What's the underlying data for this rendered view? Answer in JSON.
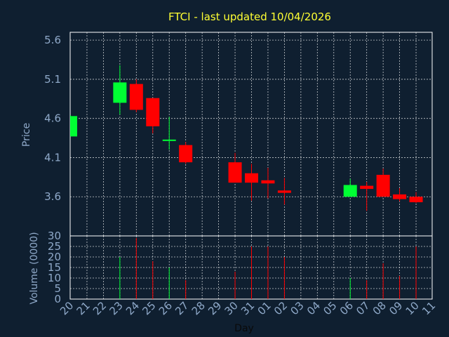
{
  "chart_data": [
    {
      "type": "candlestick",
      "title": "FTCI - last updated 10/04/2026",
      "ylabel": "Price",
      "ylim": [
        3.1,
        5.7
      ],
      "yticks": [
        "5.6",
        "5.1",
        "4.6",
        "4.1",
        "3.6"
      ],
      "colors": {
        "up": "#00ff33",
        "down": "#ff0000",
        "axis_text": "#8fa9c9",
        "title": "#ffff33",
        "background": "#0f1f30"
      },
      "candles": [
        {
          "day": "20",
          "open": 4.37,
          "high": 4.64,
          "low": 4.37,
          "close": 4.63
        },
        {
          "day": "23",
          "open": 4.8,
          "high": 5.28,
          "low": 4.65,
          "close": 5.06
        },
        {
          "day": "24",
          "open": 5.04,
          "high": 5.1,
          "low": 4.68,
          "close": 4.71
        },
        {
          "day": "25",
          "open": 4.86,
          "high": 4.86,
          "low": 4.41,
          "close": 4.5
        },
        {
          "day": "26",
          "open": 4.32,
          "high": 4.62,
          "low": 4.2,
          "close": 4.33
        },
        {
          "day": "27",
          "open": 4.26,
          "high": 4.3,
          "low": 4.02,
          "close": 4.04
        },
        {
          "day": "30",
          "open": 4.04,
          "high": 4.16,
          "low": 3.8,
          "close": 3.78
        },
        {
          "day": "31",
          "open": 3.9,
          "high": 4.02,
          "low": 3.55,
          "close": 3.78
        },
        {
          "day": "01",
          "open": 3.81,
          "high": 3.97,
          "low": 3.58,
          "close": 3.77
        },
        {
          "day": "02",
          "open": 3.68,
          "high": 3.84,
          "low": 3.5,
          "close": 3.65
        },
        {
          "day": "06",
          "open": 3.6,
          "high": 3.83,
          "low": 3.6,
          "close": 3.75
        },
        {
          "day": "07",
          "open": 3.74,
          "high": 3.79,
          "low": 3.42,
          "close": 3.7
        },
        {
          "day": "08",
          "open": 3.88,
          "high": 3.96,
          "low": 3.6,
          "close": 3.6
        },
        {
          "day": "09",
          "open": 3.63,
          "high": 3.71,
          "low": 3.54,
          "close": 3.57
        },
        {
          "day": "10",
          "open": 3.6,
          "high": 3.66,
          "low": 3.52,
          "close": 3.53
        }
      ]
    },
    {
      "type": "bar",
      "xlabel": "Day",
      "ylabel": "Volume (0000)",
      "ylim": [
        0,
        30
      ],
      "yticks": [
        "30",
        "25",
        "20",
        "15",
        "10",
        "5",
        "0"
      ],
      "categories": [
        "20",
        "21",
        "22",
        "23",
        "24",
        "25",
        "26",
        "27",
        "28",
        "29",
        "30",
        "31",
        "01",
        "02",
        "03",
        "04",
        "05",
        "06",
        "07",
        "08",
        "09",
        "10",
        "11"
      ],
      "values": [
        0,
        0,
        0,
        20,
        29,
        18,
        15,
        9,
        0,
        0,
        13,
        25,
        25,
        20,
        0,
        0,
        0,
        10,
        9,
        17,
        11,
        25,
        0
      ],
      "bar_colors": [
        "",
        "",
        "",
        "up",
        "down",
        "down",
        "up",
        "down",
        "",
        "",
        "down",
        "down",
        "down",
        "down",
        "",
        "",
        "",
        "up",
        "down",
        "down",
        "down",
        "down",
        ""
      ]
    }
  ]
}
